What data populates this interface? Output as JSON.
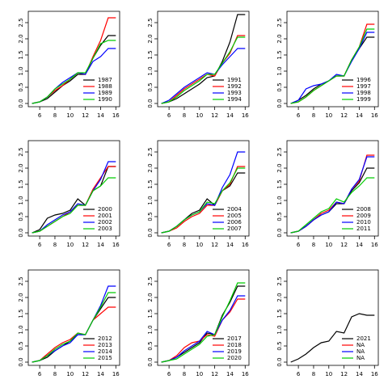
{
  "chart_data": [
    {
      "type": "line",
      "x": [
        5,
        6,
        7,
        8,
        9,
        10,
        11,
        12,
        13,
        14,
        15,
        16
      ],
      "xlim": [
        4.5,
        16.5
      ],
      "xticks": [
        6,
        8,
        10,
        12,
        14,
        16
      ],
      "ylim": [
        -0.1,
        2.85
      ],
      "yticks": [
        {
          "value": 0,
          "label": "0.0"
        },
        0.5,
        {
          "value": 1,
          "label": "1.0"
        },
        1.5,
        {
          "value": 2,
          "label": "2.0"
        },
        2.5
      ],
      "series": [
        {
          "name": "1987",
          "color": "#000000",
          "values": [
            0,
            0.05,
            0.15,
            0.35,
            0.55,
            0.7,
            0.9,
            0.9,
            1.4,
            1.8,
            2.1,
            2.1
          ]
        },
        {
          "name": "1988",
          "color": "#ff0000",
          "values": [
            0,
            0.05,
            0.2,
            0.4,
            0.55,
            0.75,
            0.95,
            0.9,
            1.45,
            1.95,
            2.65,
            2.65
          ]
        },
        {
          "name": "1989",
          "color": "#0000ff",
          "values": [
            0,
            0.05,
            0.2,
            0.45,
            0.65,
            0.8,
            0.95,
            0.9,
            1.3,
            1.45,
            1.7,
            1.7
          ]
        },
        {
          "name": "1990",
          "color": "#00cc00",
          "values": [
            0,
            0.05,
            0.2,
            0.45,
            0.6,
            0.75,
            0.95,
            0.95,
            1.4,
            1.85,
            1.95,
            1.95
          ]
        }
      ]
    },
    {
      "type": "line",
      "x": [
        5,
        6,
        7,
        8,
        9,
        10,
        11,
        12,
        13,
        14,
        15,
        16
      ],
      "xlim": [
        4.5,
        16.5
      ],
      "xticks": [
        6,
        8,
        10,
        12,
        14,
        16
      ],
      "ylim": [
        -0.1,
        2.85
      ],
      "yticks": [
        {
          "value": 0,
          "label": "0.0"
        },
        0.5,
        {
          "value": 1,
          "label": "1.0"
        },
        1.5,
        {
          "value": 2,
          "label": "2.0"
        },
        2.5
      ],
      "series": [
        {
          "name": "1991",
          "color": "#000000",
          "values": [
            0,
            0.05,
            0.15,
            0.3,
            0.45,
            0.6,
            0.8,
            0.85,
            1.3,
            1.9,
            2.75,
            2.75
          ]
        },
        {
          "name": "1992",
          "color": "#ff0000",
          "values": [
            0,
            0.05,
            0.25,
            0.45,
            0.6,
            0.75,
            0.9,
            0.85,
            1.25,
            1.55,
            2.1,
            2.1
          ]
        },
        {
          "name": "1993",
          "color": "#0000ff",
          "values": [
            0,
            0.1,
            0.3,
            0.5,
            0.65,
            0.8,
            0.95,
            0.9,
            1.2,
            1.45,
            1.7,
            1.7
          ]
        },
        {
          "name": "1994",
          "color": "#00cc00",
          "values": [
            0,
            0.05,
            0.2,
            0.4,
            0.55,
            0.7,
            0.9,
            0.9,
            1.25,
            1.6,
            2.05,
            2.05
          ]
        }
      ]
    },
    {
      "type": "line",
      "x": [
        5,
        6,
        7,
        8,
        9,
        10,
        11,
        12,
        13,
        14,
        15,
        16
      ],
      "xlim": [
        4.5,
        16.5
      ],
      "xticks": [
        6,
        8,
        10,
        12,
        14,
        16
      ],
      "ylim": [
        -0.1,
        2.85
      ],
      "yticks": [
        {
          "value": 0,
          "label": "0.0"
        },
        0.5,
        {
          "value": 1,
          "label": "1.0"
        },
        1.5,
        {
          "value": 2,
          "label": "2.0"
        },
        2.5
      ],
      "series": [
        {
          "name": "1996",
          "color": "#000000",
          "values": [
            0,
            0.1,
            0.25,
            0.45,
            0.6,
            0.7,
            0.85,
            0.85,
            1.35,
            1.7,
            2.05,
            2.05
          ]
        },
        {
          "name": "1997",
          "color": "#ff0000",
          "values": [
            0,
            0.05,
            0.2,
            0.4,
            0.55,
            0.7,
            0.85,
            0.85,
            1.35,
            1.75,
            2.45,
            2.45
          ]
        },
        {
          "name": "1998",
          "color": "#0000ff",
          "values": [
            0,
            0.1,
            0.45,
            0.55,
            0.6,
            0.7,
            0.9,
            0.85,
            1.3,
            1.7,
            2.2,
            2.2
          ]
        },
        {
          "name": "1999",
          "color": "#00cc00",
          "values": [
            0,
            0.05,
            0.2,
            0.4,
            0.55,
            0.7,
            0.85,
            0.85,
            1.35,
            1.75,
            2.3,
            2.3
          ]
        }
      ]
    },
    {
      "type": "line",
      "x": [
        5,
        6,
        7,
        8,
        9,
        10,
        11,
        12,
        13,
        14,
        15,
        16
      ],
      "xlim": [
        4.5,
        16.5
      ],
      "xticks": [
        6,
        8,
        10,
        12,
        14,
        16
      ],
      "ylim": [
        -0.1,
        2.85
      ],
      "yticks": [
        {
          "value": 0,
          "label": "0.0"
        },
        0.5,
        {
          "value": 1,
          "label": "1.0"
        },
        1.5,
        {
          "value": 2,
          "label": "2.0"
        },
        2.5
      ],
      "series": [
        {
          "name": "2000",
          "color": "#000000",
          "values": [
            0,
            0.1,
            0.45,
            0.55,
            0.6,
            0.7,
            1.05,
            0.85,
            1.3,
            1.45,
            2.05,
            2.05
          ]
        },
        {
          "name": "2001",
          "color": "#ff0000",
          "values": [
            0,
            0.05,
            0.2,
            0.35,
            0.5,
            0.65,
            0.85,
            0.85,
            1.35,
            1.7,
            2.05,
            2.05
          ]
        },
        {
          "name": "2002",
          "color": "#0000ff",
          "values": [
            0,
            0.05,
            0.25,
            0.4,
            0.55,
            0.65,
            0.9,
            0.85,
            1.3,
            1.65,
            2.2,
            2.2
          ]
        },
        {
          "name": "2003",
          "color": "#00cc00",
          "values": [
            0,
            0.05,
            0.2,
            0.35,
            0.5,
            0.6,
            0.85,
            0.85,
            1.3,
            1.45,
            1.7,
            1.7
          ]
        }
      ]
    },
    {
      "type": "line",
      "x": [
        5,
        6,
        7,
        8,
        9,
        10,
        11,
        12,
        13,
        14,
        15,
        16
      ],
      "xlim": [
        4.5,
        16.5
      ],
      "xticks": [
        6,
        8,
        10,
        12,
        14,
        16
      ],
      "ylim": [
        -0.1,
        2.85
      ],
      "yticks": [
        {
          "value": 0,
          "label": "0.0"
        },
        0.5,
        {
          "value": 1,
          "label": "1.0"
        },
        1.5,
        {
          "value": 2,
          "label": "2.0"
        },
        2.5
      ],
      "series": [
        {
          "name": "2004",
          "color": "#000000",
          "values": [
            0,
            0.05,
            0.2,
            0.4,
            0.6,
            0.7,
            1.05,
            0.85,
            1.3,
            1.45,
            1.85,
            1.85
          ]
        },
        {
          "name": "2005",
          "color": "#ff0000",
          "values": [
            0,
            0.05,
            0.15,
            0.35,
            0.5,
            0.6,
            0.85,
            0.85,
            1.3,
            1.5,
            2.05,
            2.05
          ]
        },
        {
          "name": "2006",
          "color": "#0000ff",
          "values": [
            0,
            0.05,
            0.2,
            0.4,
            0.55,
            0.65,
            0.9,
            0.85,
            1.4,
            1.8,
            2.5,
            2.5
          ]
        },
        {
          "name": "2007",
          "color": "#00cc00",
          "values": [
            0,
            0.05,
            0.2,
            0.4,
            0.55,
            0.65,
            0.95,
            0.9,
            1.3,
            1.55,
            2.0,
            2.0
          ]
        }
      ]
    },
    {
      "type": "line",
      "x": [
        5,
        6,
        7,
        8,
        9,
        10,
        11,
        12,
        13,
        14,
        15,
        16
      ],
      "xlim": [
        4.5,
        16.5
      ],
      "xticks": [
        6,
        8,
        10,
        12,
        14,
        16
      ],
      "ylim": [
        -0.1,
        2.85
      ],
      "yticks": [
        {
          "value": 0,
          "label": "0.0"
        },
        0.5,
        {
          "value": 1,
          "label": "1.0"
        },
        1.5,
        {
          "value": 2,
          "label": "2.0"
        },
        2.5
      ],
      "series": [
        {
          "name": "2008",
          "color": "#000000",
          "values": [
            0,
            0.05,
            0.2,
            0.4,
            0.55,
            0.65,
            0.9,
            0.9,
            1.3,
            1.55,
            2.0,
            2.0
          ]
        },
        {
          "name": "2009",
          "color": "#ff0000",
          "values": [
            0,
            0.05,
            0.2,
            0.4,
            0.6,
            0.7,
            0.95,
            0.9,
            1.35,
            1.6,
            2.4,
            2.4
          ]
        },
        {
          "name": "2010",
          "color": "#0000ff",
          "values": [
            0,
            0.05,
            0.2,
            0.4,
            0.55,
            0.65,
            0.95,
            0.9,
            1.35,
            1.65,
            2.35,
            2.35
          ]
        },
        {
          "name": "2011",
          "color": "#00cc00",
          "values": [
            0,
            0.05,
            0.25,
            0.45,
            0.65,
            0.75,
            1.05,
            0.95,
            1.25,
            1.45,
            1.7,
            1.7
          ]
        }
      ]
    },
    {
      "type": "line",
      "x": [
        5,
        6,
        7,
        8,
        9,
        10,
        11,
        12,
        13,
        14,
        15,
        16
      ],
      "xlim": [
        4.5,
        16.5
      ],
      "xticks": [
        6,
        8,
        10,
        12,
        14,
        16
      ],
      "ylim": [
        -0.1,
        2.85
      ],
      "yticks": [
        {
          "value": 0,
          "label": "0.0"
        },
        0.5,
        {
          "value": 1,
          "label": "1.0"
        },
        1.5,
        {
          "value": 2,
          "label": "2.0"
        },
        2.5
      ],
      "series": [
        {
          "name": "2012",
          "color": "#000000",
          "values": [
            0,
            0.05,
            0.15,
            0.35,
            0.5,
            0.65,
            0.85,
            0.85,
            1.3,
            1.65,
            2.0,
            2.0
          ]
        },
        {
          "name": "2013",
          "color": "#ff0000",
          "values": [
            0,
            0.05,
            0.25,
            0.45,
            0.6,
            0.7,
            0.9,
            0.85,
            1.3,
            1.5,
            1.7,
            1.7
          ]
        },
        {
          "name": "2014",
          "color": "#0000ff",
          "values": [
            0,
            0.05,
            0.2,
            0.35,
            0.5,
            0.6,
            0.85,
            0.85,
            1.3,
            1.75,
            2.35,
            2.35
          ]
        },
        {
          "name": "2015",
          "color": "#00cc00",
          "values": [
            0,
            0.05,
            0.2,
            0.4,
            0.55,
            0.65,
            0.9,
            0.85,
            1.3,
            1.7,
            2.15,
            2.15
          ]
        }
      ]
    },
    {
      "type": "line",
      "x": [
        5,
        6,
        7,
        8,
        9,
        10,
        11,
        12,
        13,
        14,
        15,
        16
      ],
      "xlim": [
        4.5,
        16.5
      ],
      "xticks": [
        6,
        8,
        10,
        12,
        14,
        16
      ],
      "ylim": [
        -0.1,
        2.85
      ],
      "yticks": [
        {
          "value": 0,
          "label": "0.0"
        },
        0.5,
        {
          "value": 1,
          "label": "1.0"
        },
        1.5,
        {
          "value": 2,
          "label": "2.0"
        },
        2.5
      ],
      "series": [
        {
          "name": "2017",
          "color": "#000000",
          "values": [
            0,
            0.05,
            0.15,
            0.3,
            0.45,
            0.6,
            0.9,
            0.85,
            1.45,
            1.85,
            2.35,
            2.35
          ]
        },
        {
          "name": "2018",
          "color": "#ff0000",
          "values": [
            0,
            0.05,
            0.2,
            0.45,
            0.6,
            0.65,
            0.85,
            0.8,
            1.3,
            1.55,
            1.95,
            1.95
          ]
        },
        {
          "name": "2019",
          "color": "#0000ff",
          "values": [
            0,
            0.05,
            0.15,
            0.35,
            0.5,
            0.65,
            0.95,
            0.85,
            1.3,
            1.6,
            2.05,
            2.05
          ]
        },
        {
          "name": "2020",
          "color": "#00cc00",
          "values": [
            0,
            0.05,
            0.1,
            0.25,
            0.4,
            0.55,
            0.8,
            0.85,
            1.4,
            1.9,
            2.45,
            2.45
          ]
        }
      ]
    },
    {
      "type": "line",
      "x": [
        5,
        6,
        7,
        8,
        9,
        10,
        11,
        12,
        13,
        14,
        15,
        16
      ],
      "xlim": [
        4.5,
        16.5
      ],
      "xticks": [
        6,
        8,
        10,
        12,
        14,
        16
      ],
      "ylim": [
        -0.1,
        2.85
      ],
      "yticks": [
        {
          "value": 0,
          "label": "0.0"
        },
        0.5,
        {
          "value": 1,
          "label": "1.0"
        },
        1.5,
        {
          "value": 2,
          "label": "2.0"
        },
        2.5
      ],
      "series": [
        {
          "name": "2021",
          "color": "#000000",
          "values": [
            0,
            0.1,
            0.25,
            0.45,
            0.6,
            0.65,
            0.95,
            0.9,
            1.4,
            1.5,
            1.45,
            1.45
          ]
        },
        {
          "name": "NA",
          "color": "#ff0000",
          "values": [
            null,
            null,
            null,
            null,
            null,
            null,
            null,
            null,
            null,
            null,
            null,
            null
          ]
        },
        {
          "name": "NA",
          "color": "#0000ff",
          "values": [
            null,
            null,
            null,
            null,
            null,
            null,
            null,
            null,
            null,
            null,
            null,
            null
          ]
        },
        {
          "name": "NA",
          "color": "#00cc00",
          "values": [
            null,
            null,
            null,
            null,
            null,
            null,
            null,
            null,
            null,
            null,
            null,
            null
          ]
        }
      ]
    }
  ]
}
